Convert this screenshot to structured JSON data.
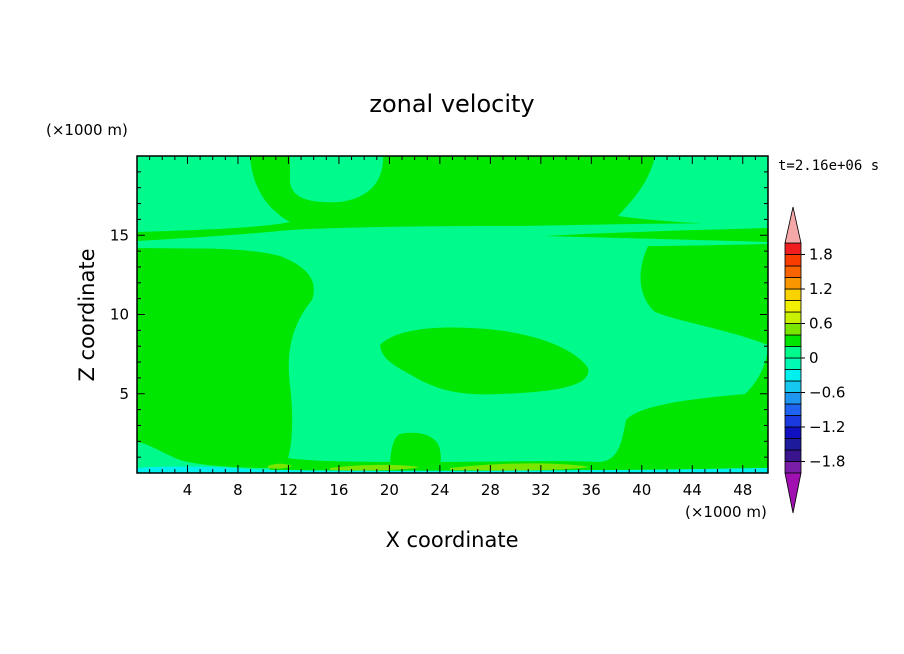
{
  "chart_data": {
    "type": "heatmap",
    "title": "zonal velocity",
    "xlabel": "X coordinate",
    "ylabel": "Z coordinate",
    "x_unit": "(×1000 m)",
    "y_unit": "(×1000 m)",
    "time_label": "t=2.16e+06 s",
    "xlim": [
      0,
      50
    ],
    "ylim": [
      0,
      20
    ],
    "x_ticks": [
      4,
      8,
      12,
      16,
      20,
      24,
      28,
      32,
      36,
      40,
      44,
      48
    ],
    "y_ticks": [
      5,
      10,
      15
    ],
    "colorbar": {
      "levels": [
        -2.0,
        -1.8,
        -1.6,
        -1.4,
        -1.2,
        -1.0,
        -0.8,
        -0.6,
        -0.4,
        -0.2,
        0.0,
        0.2,
        0.4,
        0.6,
        0.8,
        1.0,
        1.2,
        1.4,
        1.6,
        1.8,
        2.0
      ],
      "colors": [
        "#7a1ea8",
        "#3a148c",
        "#1d1a9c",
        "#1010c0",
        "#1a3ae0",
        "#1e64f0",
        "#1e96f0",
        "#14c8f0",
        "#00f0f0",
        "#00fab4",
        "#00fa8c",
        "#00e600",
        "#7ae600",
        "#c8f000",
        "#f0f000",
        "#fad200",
        "#fa9600",
        "#fa6400",
        "#fa3c00",
        "#f01e1e"
      ],
      "under_color": "#a010b0",
      "over_color": "#f5a8a8",
      "tick_labels": [
        "1.8",
        "1.2",
        "0.6",
        "0",
        "−0.6",
        "−1.2",
        "−1.8"
      ],
      "tick_values": [
        1.8,
        1.2,
        0.6,
        0.0,
        -0.6,
        -1.2,
        -1.8
      ]
    },
    "fields": {
      "background": "#00e600",
      "weak_flow": "#00fa8c",
      "negative_flow": "#00f0f0",
      "positive_flow": "#7ae600"
    }
  }
}
